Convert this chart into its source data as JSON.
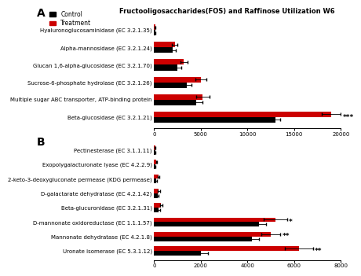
{
  "title_A": "Fructooligosaccharides(FOS) and Raffinose Utilization W6",
  "panel_A_categories": [
    "Hyaluronoglucosaminidase (EC 3.2.1.35)",
    "Alpha-mannosidase (EC 3.2.1.24)",
    "Glucan 1,6-alpha-glucosidase (EC 3.2.1.70)",
    "Sucrose-6-phosphate hydrolase (EC 3.2.1.26)",
    "Multiple sugar ABC transporter, ATP-binding protein",
    "Beta-glucosidase (EC 3.2.1.21)"
  ],
  "panel_A_control": [
    100,
    2000,
    2500,
    3500,
    4500,
    13000
  ],
  "panel_A_treatment": [
    100,
    2200,
    3200,
    5000,
    5200,
    19000
  ],
  "panel_A_control_err": [
    50,
    300,
    400,
    500,
    700,
    500
  ],
  "panel_A_treatment_err": [
    50,
    300,
    400,
    600,
    700,
    1000
  ],
  "panel_A_xlim": [
    0,
    20000
  ],
  "panel_A_xticks": [
    0,
    5000,
    10000,
    15000,
    20000
  ],
  "panel_A_significance": [
    "",
    "",
    "",
    "",
    "",
    "***"
  ],
  "panel_B_categories": [
    "Pectinesterase (EC 3.1.1.11)",
    "Exopolygalacturonate lyase (EC 4.2.2.9)",
    "2-keto-3-deoxygluconate permease (KDG permease)",
    "D-galactarate dehydratase (EC 4.2.1.42)",
    "Beta-glucuronidase (EC 3.2.1.31)",
    "D-mannonate oxidoreductase (EC 1.1.1.57)",
    "Mannonate dehydratase (EC 4.2.1.8)",
    "Uronate isomerase (EC 5.3.1.12)"
  ],
  "panel_B_control": [
    50,
    50,
    100,
    150,
    200,
    4500,
    4200,
    2000
  ],
  "panel_B_treatment": [
    50,
    100,
    200,
    200,
    300,
    5200,
    5000,
    6200
  ],
  "panel_B_control_err": [
    20,
    20,
    30,
    30,
    40,
    300,
    300,
    300
  ],
  "panel_B_treatment_err": [
    20,
    20,
    30,
    40,
    50,
    500,
    400,
    600
  ],
  "panel_B_xlim": [
    0,
    8000
  ],
  "panel_B_xticks": [
    0,
    2000,
    4000,
    6000,
    8000
  ],
  "panel_B_significance": [
    "",
    "",
    "",
    "",
    "",
    "*",
    "**",
    "**"
  ],
  "control_color": "#000000",
  "treatment_color": "#cc0000",
  "bar_height": 0.32,
  "background_color": "#ffffff",
  "font_size_labels": 5.0,
  "font_size_title": 6.0,
  "font_size_ticks": 5.0,
  "font_size_legend": 5.5,
  "font_size_sig": 6.5,
  "font_size_panel": 10
}
